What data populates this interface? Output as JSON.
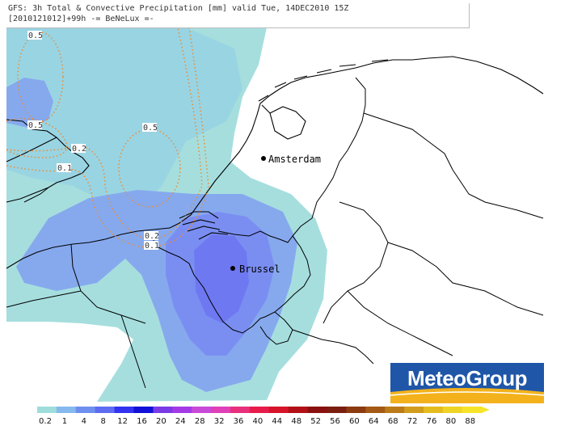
{
  "header": {
    "line1": "GFS: 3h Total & Convective Precipitation [mm] valid Tue, 14DEC2010 15Z",
    "line2": "[2010121012]+99h  -= BeNeLux =-"
  },
  "cities": [
    {
      "name": "Amsterdam",
      "label": "Amsterdam"
    },
    {
      "name": "Brussel",
      "label": "Brussel"
    }
  ],
  "contour_labels": [
    "0.5",
    "0.5",
    "0.5",
    "0.2",
    "0.1",
    "0.2",
    "0.1"
  ],
  "logo": {
    "text": "MeteoGroup",
    "bg_color": "#1f56a8",
    "accent_color": "#f3b21c"
  },
  "legend": {
    "ticks": [
      "0.2",
      "1",
      "4",
      "8",
      "12",
      "16",
      "20",
      "24",
      "28",
      "32",
      "36",
      "40",
      "44",
      "48",
      "52",
      "56",
      "60",
      "64",
      "68",
      "72",
      "76",
      "80",
      "88"
    ],
    "colors": [
      "#9fdcdc",
      "#86b9ee",
      "#6f8ff0",
      "#5e6cf2",
      "#3232f0",
      "#1010d8",
      "#7a3ae6",
      "#a43ae6",
      "#c84ad8",
      "#e040b8",
      "#e8307c",
      "#e81c4a",
      "#d6142a",
      "#b21016",
      "#8a1010",
      "#7a1e10",
      "#8c3a10",
      "#a45a14",
      "#bc7a18",
      "#d29c1c",
      "#e4bc1e",
      "#eed424",
      "#f6e42a"
    ]
  }
}
